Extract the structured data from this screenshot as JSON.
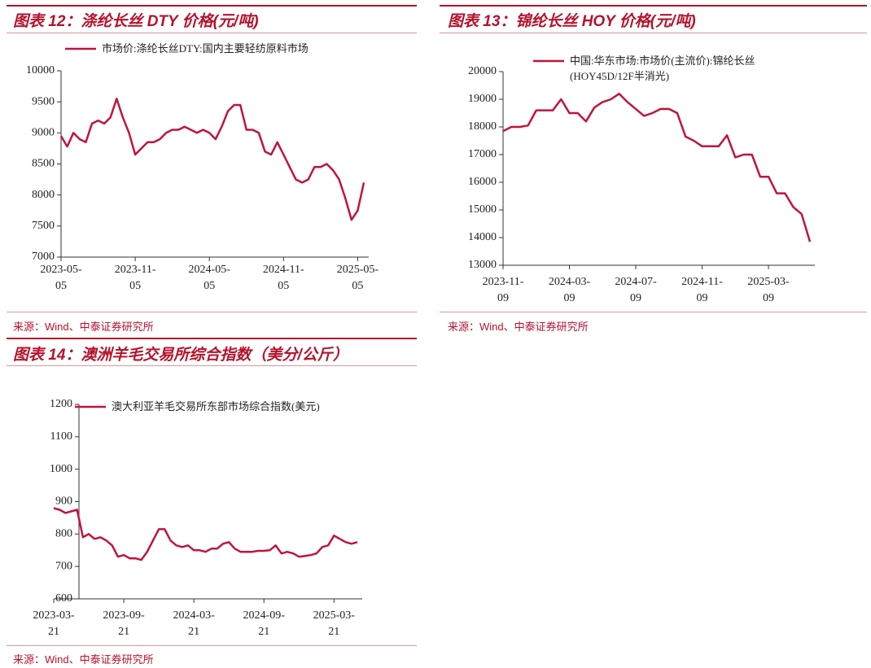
{
  "chart_data": [
    {
      "type": "line",
      "title": "图表 12：涤纶长丝 DTY 价格(元/吨)",
      "source": "来源：Wind、中泰证券研究所",
      "categories": [
        "2023-05-05",
        null,
        null,
        null,
        null,
        null,
        null,
        null,
        null,
        null,
        null,
        null,
        "2023-11-05",
        null,
        null,
        null,
        null,
        null,
        null,
        null,
        null,
        null,
        null,
        null,
        "2024-05-05",
        null,
        null,
        null,
        null,
        null,
        null,
        null,
        null,
        null,
        null,
        null,
        "2024-11-05",
        null,
        null,
        null,
        null,
        null,
        null,
        null,
        null,
        null,
        null,
        null,
        "2025-05-05",
        null
      ],
      "series": [
        {
          "name": "市场价:涤纶长丝DTY:国内主要轻纺原料市场",
          "color": "#c0143c",
          "values": [
            8950,
            8780,
            9000,
            8900,
            8850,
            9150,
            9200,
            9150,
            9250,
            9550,
            9250,
            9000,
            8650,
            8750,
            8850,
            8850,
            8900,
            9000,
            9050,
            9050,
            9100,
            9050,
            9000,
            9050,
            9000,
            8900,
            9100,
            9350,
            9450,
            9450,
            9050,
            9050,
            9000,
            8700,
            8650,
            8850,
            8650,
            8450,
            8250,
            8200,
            8250,
            8450,
            8450,
            8500,
            8400,
            8250,
            7950,
            7600,
            7750,
            8200
          ]
        }
      ],
      "ylim": [
        7000,
        10000
      ],
      "yticks": [
        7000,
        7500,
        8000,
        8500,
        9000,
        9500,
        10000
      ]
    },
    {
      "type": "line",
      "title": "图表 13：锦纶长丝 HOY 价格(元/吨)",
      "source": "来源：Wind、中泰证券研究所",
      "categories": [
        "2023-11-09",
        null,
        null,
        null,
        null,
        null,
        null,
        null,
        "2024-03-09",
        null,
        null,
        null,
        null,
        null,
        null,
        null,
        "2024-07-09",
        null,
        null,
        null,
        null,
        null,
        null,
        null,
        "2024-11-09",
        null,
        null,
        null,
        null,
        null,
        null,
        null,
        "2025-03-09",
        null,
        null,
        null,
        null,
        null
      ],
      "series": [
        {
          "name": "中国:华东市场:市场价(主流价):锦纶长丝(HOY45D/12F半消光)",
          "color": "#c0143c",
          "values": [
            17850,
            18000,
            18000,
            18050,
            18600,
            18600,
            18600,
            19000,
            18500,
            18500,
            18200,
            18700,
            18900,
            19000,
            19200,
            18900,
            18650,
            18400,
            18500,
            18650,
            18650,
            18500,
            17650,
            17500,
            17300,
            17300,
            17300,
            17700,
            16900,
            17000,
            17000,
            16200,
            16200,
            15600,
            15600,
            15100,
            14850,
            13850
          ]
        }
      ],
      "ylim": [
        13000,
        20000
      ],
      "yticks": [
        13000,
        14000,
        15000,
        16000,
        17000,
        18000,
        19000,
        20000
      ]
    },
    {
      "type": "line",
      "title": "图表 14：澳洲羊毛交易所综合指数（美分/公斤）",
      "source": "来源：Wind、中泰证券研究所",
      "categories": [
        "2023-03-21",
        null,
        null,
        null,
        null,
        null,
        null,
        null,
        null,
        null,
        null,
        null,
        "2023-09-21",
        null,
        null,
        null,
        null,
        null,
        null,
        null,
        null,
        null,
        null,
        null,
        "2024-03-21",
        null,
        null,
        null,
        null,
        null,
        null,
        null,
        null,
        null,
        null,
        null,
        "2024-09-21",
        null,
        null,
        null,
        null,
        null,
        null,
        null,
        null,
        null,
        null,
        null,
        "2025-03-21",
        null,
        null,
        null,
        null
      ],
      "series": [
        {
          "name": "澳大利亚羊毛交易所东部市场综合指数(美元)",
          "color": "#c0143c",
          "values": [
            880,
            875,
            865,
            870,
            875,
            790,
            800,
            785,
            790,
            780,
            765,
            730,
            735,
            725,
            725,
            720,
            745,
            780,
            815,
            815,
            780,
            765,
            760,
            765,
            750,
            750,
            745,
            755,
            755,
            770,
            775,
            755,
            745,
            745,
            745,
            748,
            748,
            750,
            765,
            740,
            745,
            740,
            730,
            732,
            735,
            740,
            760,
            765,
            795,
            785,
            775,
            770,
            775
          ]
        }
      ],
      "ylim": [
        600,
        1200
      ],
      "yticks": [
        600,
        700,
        800,
        900,
        1000,
        1100,
        1200
      ]
    }
  ]
}
